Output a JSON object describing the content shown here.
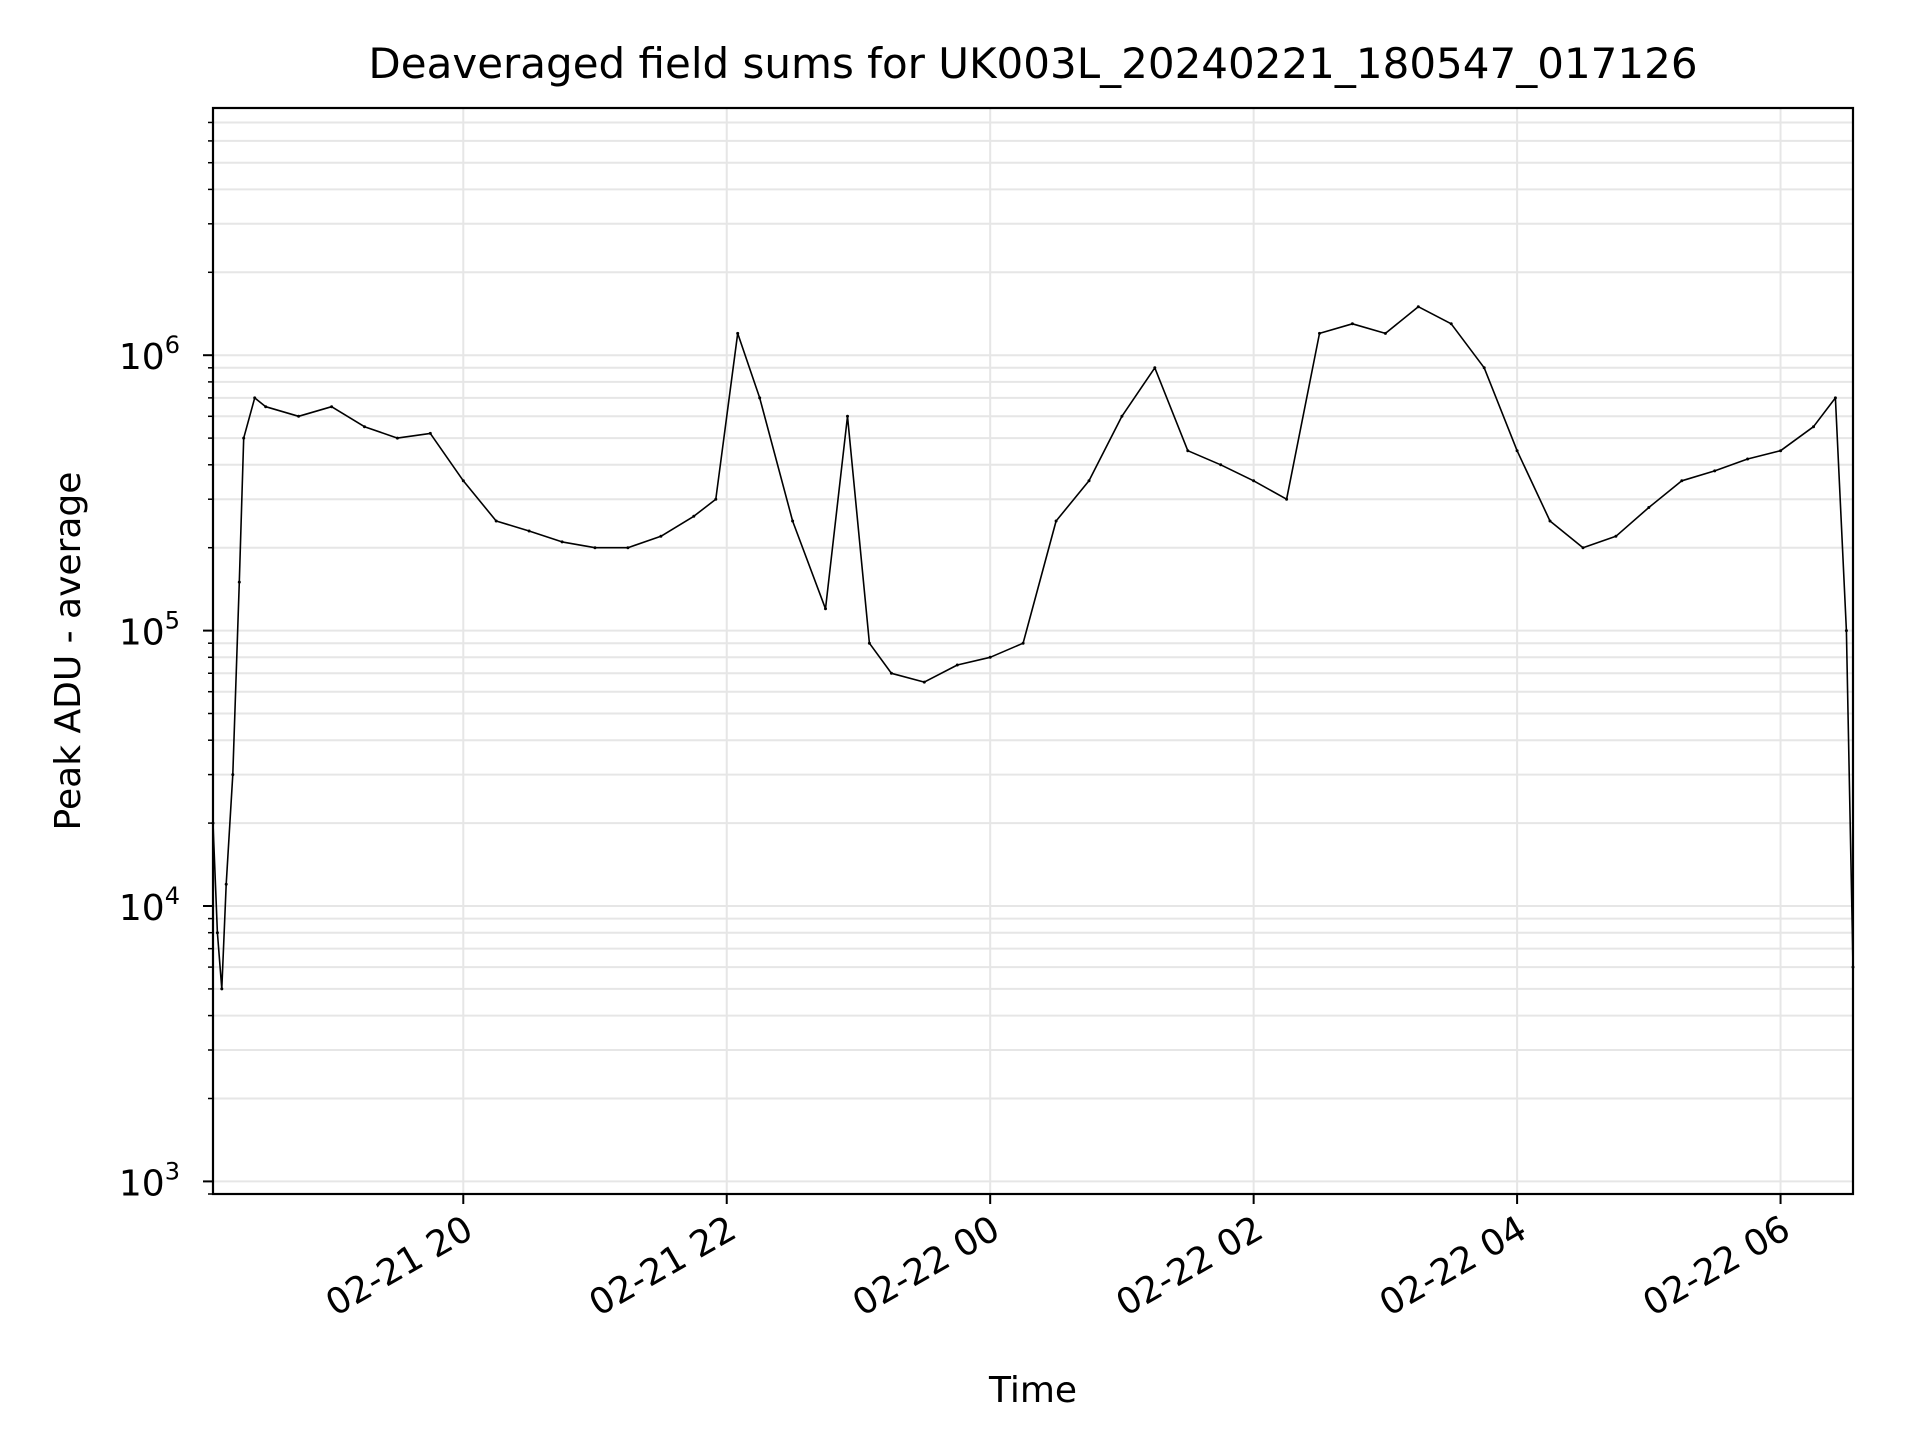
{
  "chart_data": {
    "type": "line",
    "title": "Deaveraged field sums for UK003L_20240221_180547_017126",
    "xlabel": "Time",
    "ylabel": "Peak ADU - average",
    "yscale": "log",
    "ylim": [
      900,
      7900000
    ],
    "xlim": [
      "2024-02-21 18:06",
      "2024-02-22 06:33"
    ],
    "grid": true,
    "line_color": "#000000",
    "x_ticks": [
      {
        "t": "2024-02-21 20:00",
        "label": "02-21 20"
      },
      {
        "t": "2024-02-21 22:00",
        "label": "02-21 22"
      },
      {
        "t": "2024-02-22 00:00",
        "label": "02-22 00"
      },
      {
        "t": "2024-02-22 02:00",
        "label": "02-22 02"
      },
      {
        "t": "2024-02-22 04:00",
        "label": "02-22 04"
      },
      {
        "t": "2024-02-22 06:00",
        "label": "02-22 06"
      }
    ],
    "y_ticks": [
      {
        "value": 1000,
        "base": "10",
        "exp": "3"
      },
      {
        "value": 10000,
        "base": "10",
        "exp": "4"
      },
      {
        "value": 100000,
        "base": "10",
        "exp": "5"
      },
      {
        "value": 1000000,
        "base": "10",
        "exp": "6"
      }
    ],
    "series": [
      {
        "x": [
          "2024-02-21 18:06",
          "2024-02-21 18:08",
          "2024-02-21 18:10",
          "2024-02-21 18:12",
          "2024-02-21 18:15",
          "2024-02-21 18:18",
          "2024-02-21 18:20",
          "2024-02-21 18:25",
          "2024-02-21 18:30",
          "2024-02-21 18:45",
          "2024-02-21 19:00",
          "2024-02-21 19:15",
          "2024-02-21 19:30",
          "2024-02-21 19:45",
          "2024-02-21 20:00",
          "2024-02-21 20:15",
          "2024-02-21 20:30",
          "2024-02-21 20:45",
          "2024-02-21 21:00",
          "2024-02-21 21:15",
          "2024-02-21 21:30",
          "2024-02-21 21:45",
          "2024-02-21 21:55",
          "2024-02-21 22:05",
          "2024-02-21 22:15",
          "2024-02-21 22:30",
          "2024-02-21 22:45",
          "2024-02-21 22:55",
          "2024-02-21 23:05",
          "2024-02-21 23:15",
          "2024-02-21 23:30",
          "2024-02-21 23:45",
          "2024-02-22 00:00",
          "2024-02-22 00:15",
          "2024-02-22 00:30",
          "2024-02-22 00:45",
          "2024-02-22 01:00",
          "2024-02-22 01:15",
          "2024-02-22 01:30",
          "2024-02-22 01:45",
          "2024-02-22 02:00",
          "2024-02-22 02:15",
          "2024-02-22 02:30",
          "2024-02-22 02:45",
          "2024-02-22 03:00",
          "2024-02-22 03:15",
          "2024-02-22 03:30",
          "2024-02-22 03:45",
          "2024-02-22 04:00",
          "2024-02-22 04:15",
          "2024-02-22 04:30",
          "2024-02-22 04:45",
          "2024-02-22 05:00",
          "2024-02-22 05:15",
          "2024-02-22 05:30",
          "2024-02-22 05:45",
          "2024-02-22 06:00",
          "2024-02-22 06:15",
          "2024-02-22 06:25",
          "2024-02-22 06:30",
          "2024-02-22 06:33"
        ],
        "y": [
          20000,
          8000,
          5000,
          12000,
          30000,
          150000,
          500000,
          700000,
          650000,
          600000,
          650000,
          550000,
          500000,
          520000,
          350000,
          250000,
          230000,
          210000,
          200000,
          200000,
          220000,
          260000,
          300000,
          1200000,
          700000,
          250000,
          120000,
          600000,
          90000,
          70000,
          65000,
          75000,
          80000,
          90000,
          250000,
          350000,
          600000,
          900000,
          450000,
          400000,
          350000,
          300000,
          1200000,
          1300000,
          1200000,
          1500000,
          1300000,
          900000,
          450000,
          250000,
          200000,
          220000,
          280000,
          350000,
          380000,
          420000,
          450000,
          550000,
          700000,
          100000,
          6000
        ]
      }
    ]
  }
}
